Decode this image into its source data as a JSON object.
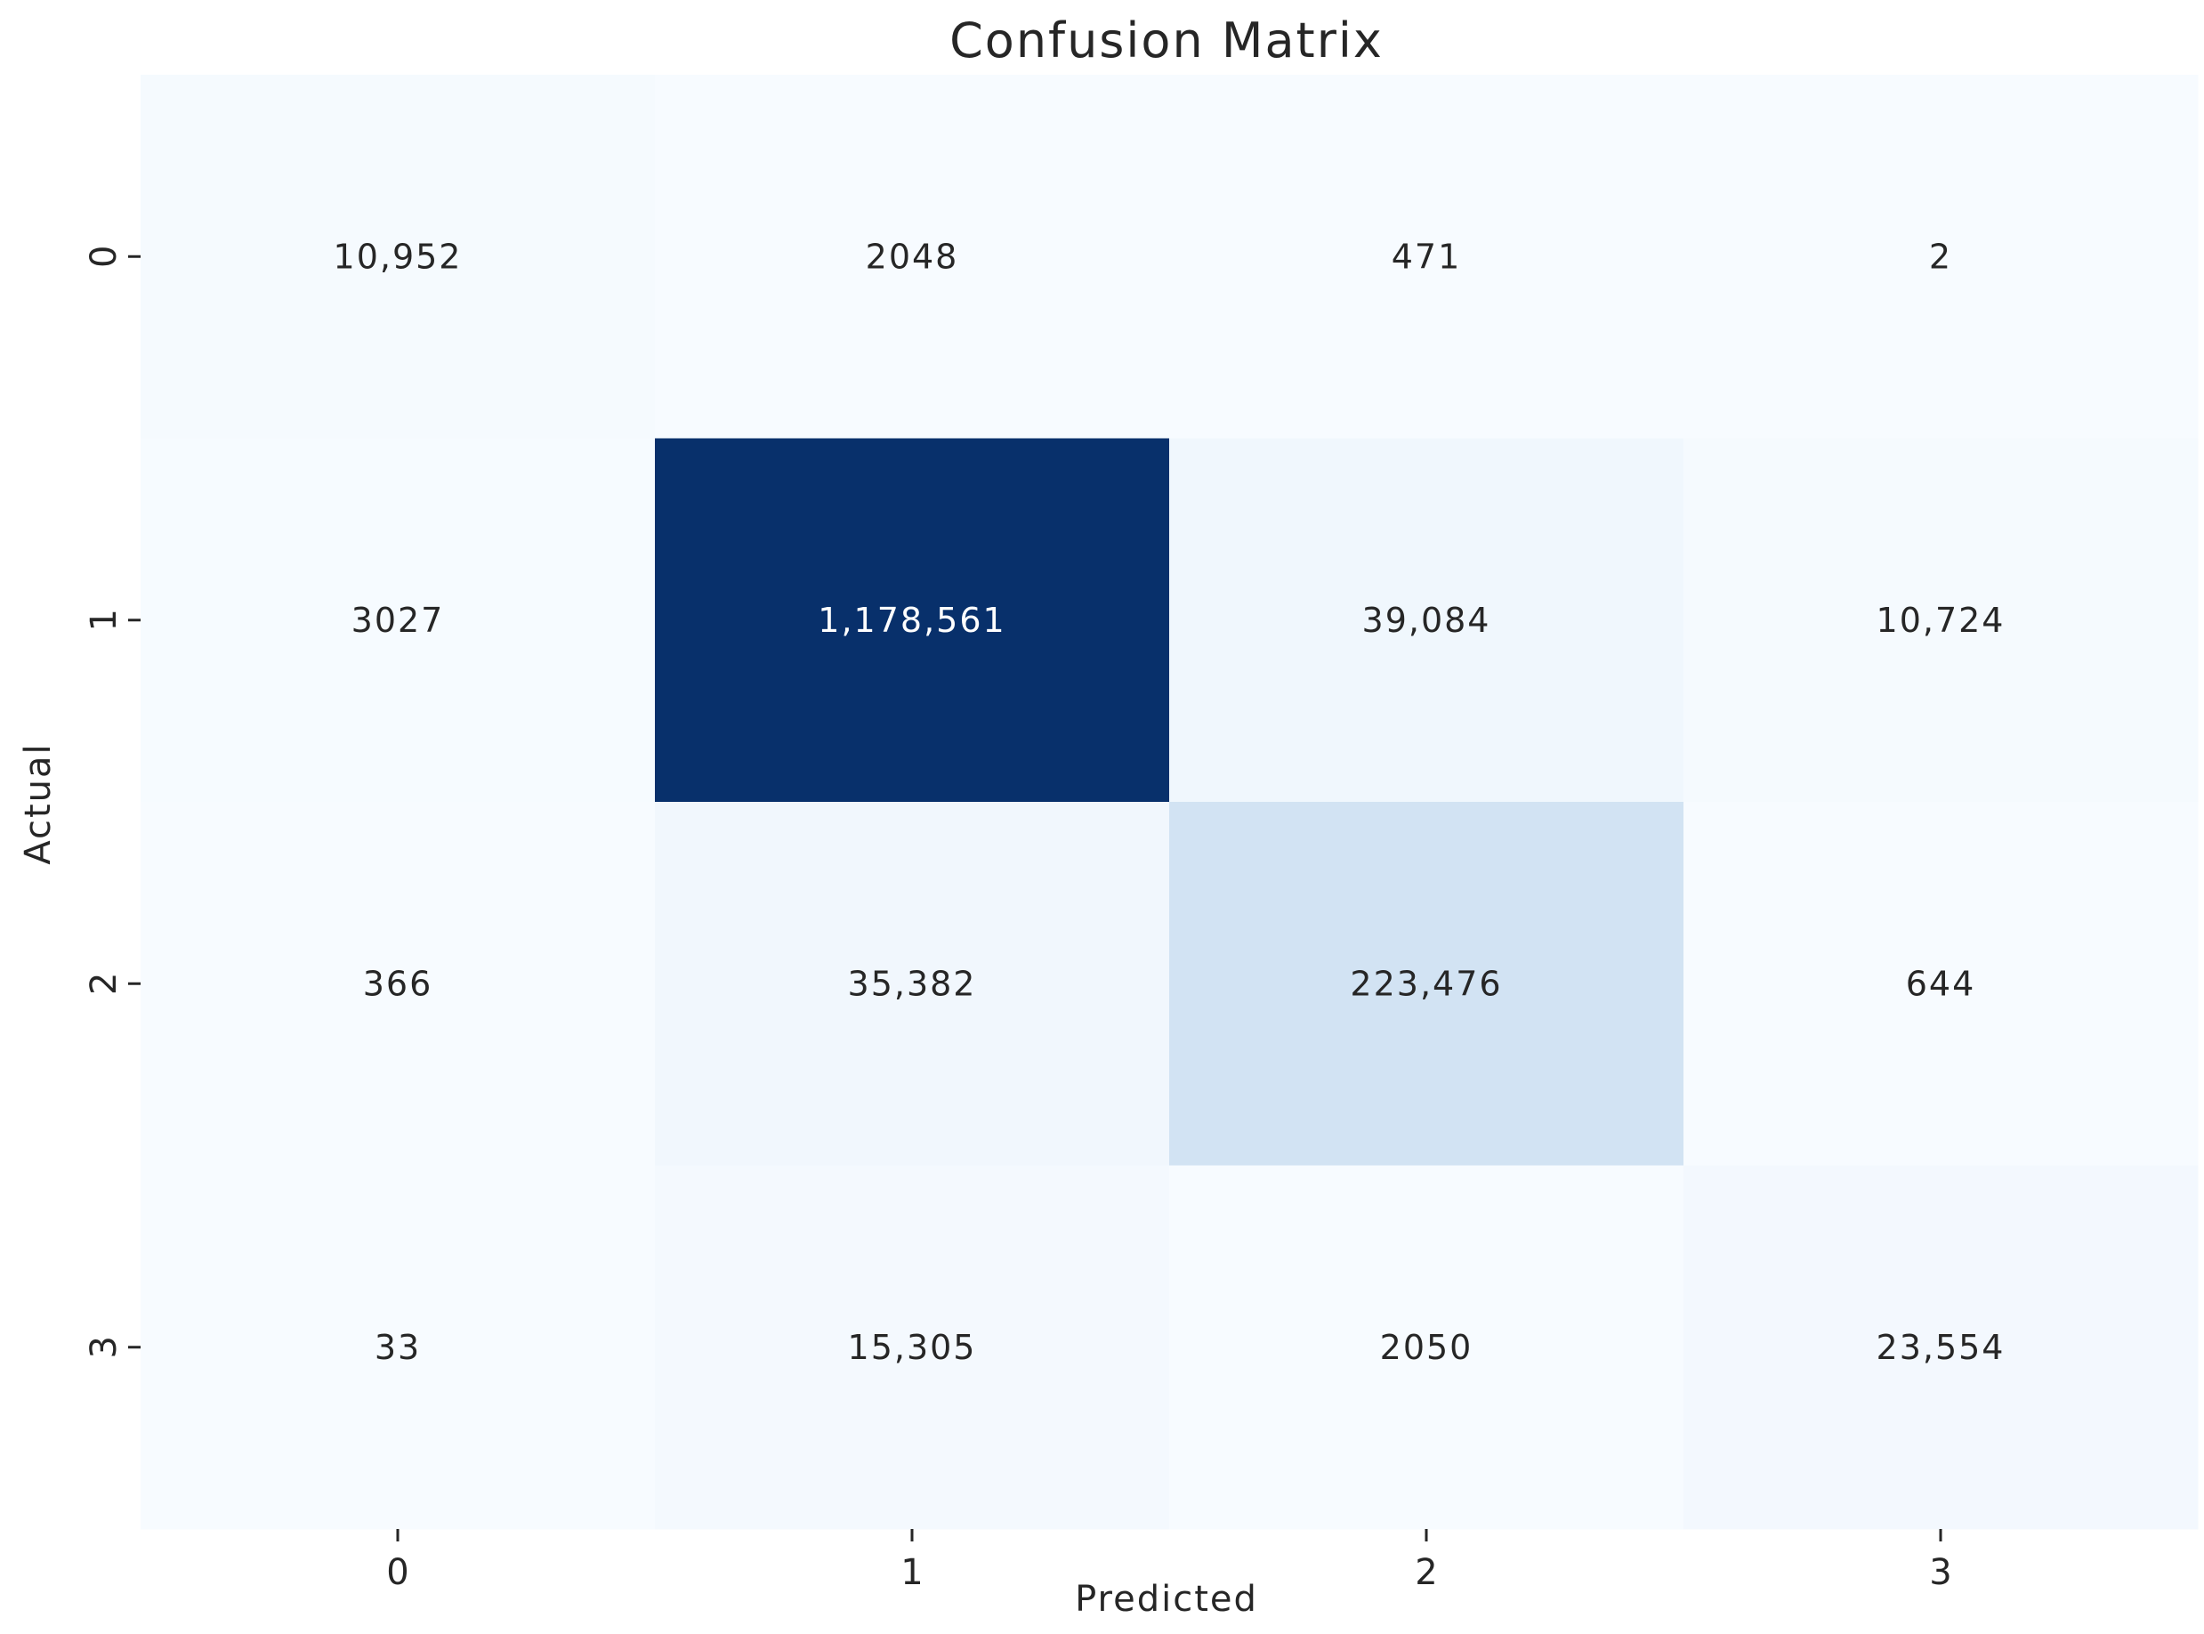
{
  "chart_data": {
    "type": "heatmap",
    "title": "Confusion Matrix",
    "xlabel": "Predicted",
    "ylabel": "Actual",
    "x_categories": [
      "0",
      "1",
      "2",
      "3"
    ],
    "y_categories": [
      "0",
      "1",
      "2",
      "3"
    ],
    "values": [
      [
        10952,
        2048,
        471,
        2
      ],
      [
        3027,
        1178561,
        39084,
        10724
      ],
      [
        366,
        35382,
        223476,
        644
      ],
      [
        33,
        15305,
        2050,
        23554
      ]
    ],
    "value_labels": [
      [
        "10,952",
        "2048",
        "471",
        "2"
      ],
      [
        "3027",
        "1,178,561",
        "39,084",
        "10,724"
      ],
      [
        "366",
        "35,382",
        "223,476",
        "644"
      ],
      [
        "33",
        "15,305",
        "2050",
        "23,554"
      ]
    ],
    "colormap": "Blues",
    "colorbar": false,
    "colors": {
      "low": "#f7fbff",
      "high": "#08306b",
      "text_dark": "#262626",
      "text_light": "#ffffff"
    }
  }
}
